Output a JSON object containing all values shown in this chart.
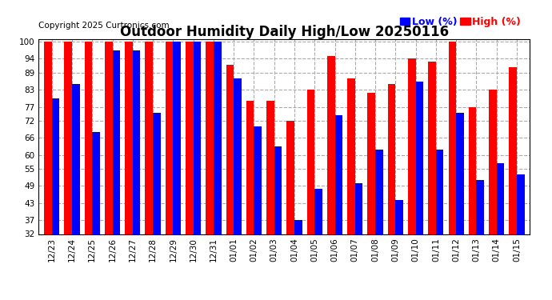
{
  "title": "Outdoor Humidity Daily High/Low 20250116",
  "copyright": "Copyright 2025 Curtronics.com",
  "legend_low": "Low (%)",
  "legend_high": "High (%)",
  "categories": [
    "12/23",
    "12/24",
    "12/25",
    "12/26",
    "12/27",
    "12/28",
    "12/29",
    "12/30",
    "12/31",
    "01/01",
    "01/02",
    "01/03",
    "01/04",
    "01/05",
    "01/06",
    "01/07",
    "01/08",
    "01/09",
    "01/10",
    "01/11",
    "01/12",
    "01/13",
    "01/14",
    "01/15"
  ],
  "high_values": [
    100,
    100,
    100,
    100,
    100,
    100,
    100,
    100,
    100,
    92,
    79,
    79,
    72,
    83,
    95,
    87,
    82,
    85,
    94,
    93,
    100,
    77,
    83,
    91
  ],
  "low_values": [
    80,
    85,
    68,
    97,
    97,
    75,
    100,
    100,
    100,
    87,
    70,
    63,
    37,
    48,
    74,
    50,
    62,
    44,
    86,
    62,
    75,
    51,
    57,
    53
  ],
  "high_color": "#ff0000",
  "low_color": "#0000ff",
  "bg_color": "#ffffff",
  "grid_color": "#aaaaaa",
  "ymin": 32,
  "ylim_max": 100,
  "yticks": [
    32,
    37,
    43,
    49,
    55,
    60,
    66,
    72,
    77,
    83,
    89,
    94,
    100
  ],
  "bar_width": 0.38,
  "title_fontsize": 12,
  "copyright_fontsize": 7.5,
  "tick_fontsize": 7.5,
  "legend_fontsize": 9
}
